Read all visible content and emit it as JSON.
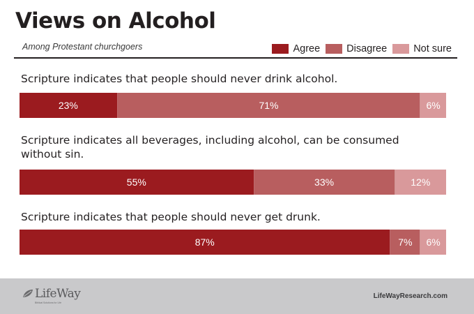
{
  "header": {
    "title": "Views on Alcohol",
    "subtitle": "Among Protestant churchgoers"
  },
  "legend": [
    {
      "label": "Agree",
      "color": "#9b1b1f"
    },
    {
      "label": "Disagree",
      "color": "#b85e5f"
    },
    {
      "label": "Not sure",
      "color": "#d9999b"
    }
  ],
  "chart_data": {
    "type": "bar",
    "orientation": "horizontal-stacked-100",
    "title": "Views on Alcohol",
    "subtitle": "Among Protestant churchgoers",
    "series_names": [
      "Agree",
      "Disagree",
      "Not sure"
    ],
    "colors": [
      "#9b1b1f",
      "#b85e5f",
      "#d9999b"
    ],
    "legend_position": "top-right",
    "items": [
      {
        "statement": "Scripture indicates that people should never drink alcohol.",
        "values": [
          23,
          71,
          6
        ],
        "labels": [
          "23%",
          "71%",
          "6%"
        ]
      },
      {
        "statement": "Scripture indicates all beverages, including alcohol, can be consumed without sin.",
        "values": [
          55,
          33,
          12
        ],
        "labels": [
          "55%",
          "33%",
          "12%"
        ]
      },
      {
        "statement": "Scripture indicates that people should never get drunk.",
        "values": [
          87,
          7,
          6
        ],
        "labels": [
          "87%",
          "7%",
          "6%"
        ]
      }
    ]
  },
  "footer": {
    "logo_text": "LifeWay",
    "logo_tagline": "Biblical Solutions for Life",
    "website": "LifeWayResearch.com"
  }
}
